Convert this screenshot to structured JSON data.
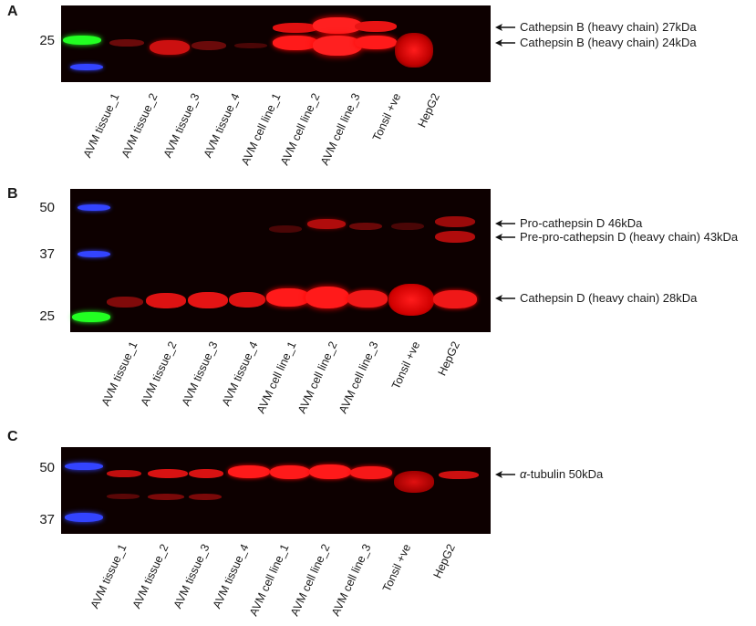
{
  "panels": {
    "A": {
      "letter": "A",
      "markers": [
        "25"
      ],
      "annotations": [
        "Cathepsin B (heavy chain) 27kDa",
        "Cathepsin B (heavy chain) 24kDa"
      ],
      "lanes": [
        "AVM tissue_1",
        "AVM tissue_2",
        "AVM tissue_3",
        "AVM tissue_4",
        "AVM cell line_1",
        "AVM cell line_2",
        "AVM cell line_3",
        "Tonsil +ve",
        "HepG2"
      ]
    },
    "B": {
      "letter": "B",
      "markers": [
        "50",
        "37",
        "25"
      ],
      "annotations": [
        "Pro-cathepsin D 46kDa",
        "Pre-pro-cathepsin D (heavy chain) 43kDa",
        "Cathepsin D (heavy chain) 28kDa"
      ],
      "lanes": [
        "AVM tissue_1",
        "AVM tissue_2",
        "AVM tissue_3",
        "AVM tissue_4",
        "AVM cell line_1",
        "AVM cell line_2",
        "AVM cell line_3",
        "Tonsil +ve",
        "HepG2"
      ]
    },
    "C": {
      "letter": "C",
      "markers": [
        "50",
        "37"
      ],
      "annotation_prefix": "α",
      "annotations": [
        "-tubulin 50kDa"
      ],
      "lanes": [
        "AVM tissue_1",
        "AVM tissue_2",
        "AVM tissue_3",
        "AVM tissue_4",
        "AVM cell line_1",
        "AVM cell line_2",
        "AVM cell line_3",
        "Tonsil +ve",
        "HepG2"
      ]
    }
  },
  "colors": {
    "band": "#ff1a1a",
    "ladder_green": "#22ff22",
    "ladder_blue": "#3344ff",
    "gel_bg": "#0d0000"
  }
}
